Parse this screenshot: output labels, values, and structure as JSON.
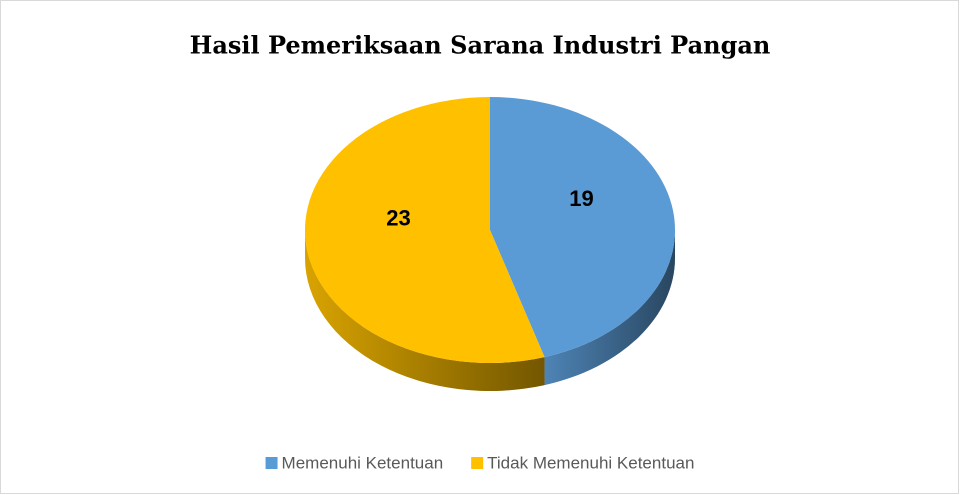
{
  "chart_data": {
    "type": "pie",
    "title": "Hasil Pemeriksaan Sarana Industri Pangan",
    "categories": [
      "Memenuhi Ketentuan",
      "Tidak Memenuhi Ketentuan"
    ],
    "values": [
      19,
      23
    ],
    "colors": [
      "#5b9bd5",
      "#ffc000"
    ],
    "legend": "bottom"
  }
}
